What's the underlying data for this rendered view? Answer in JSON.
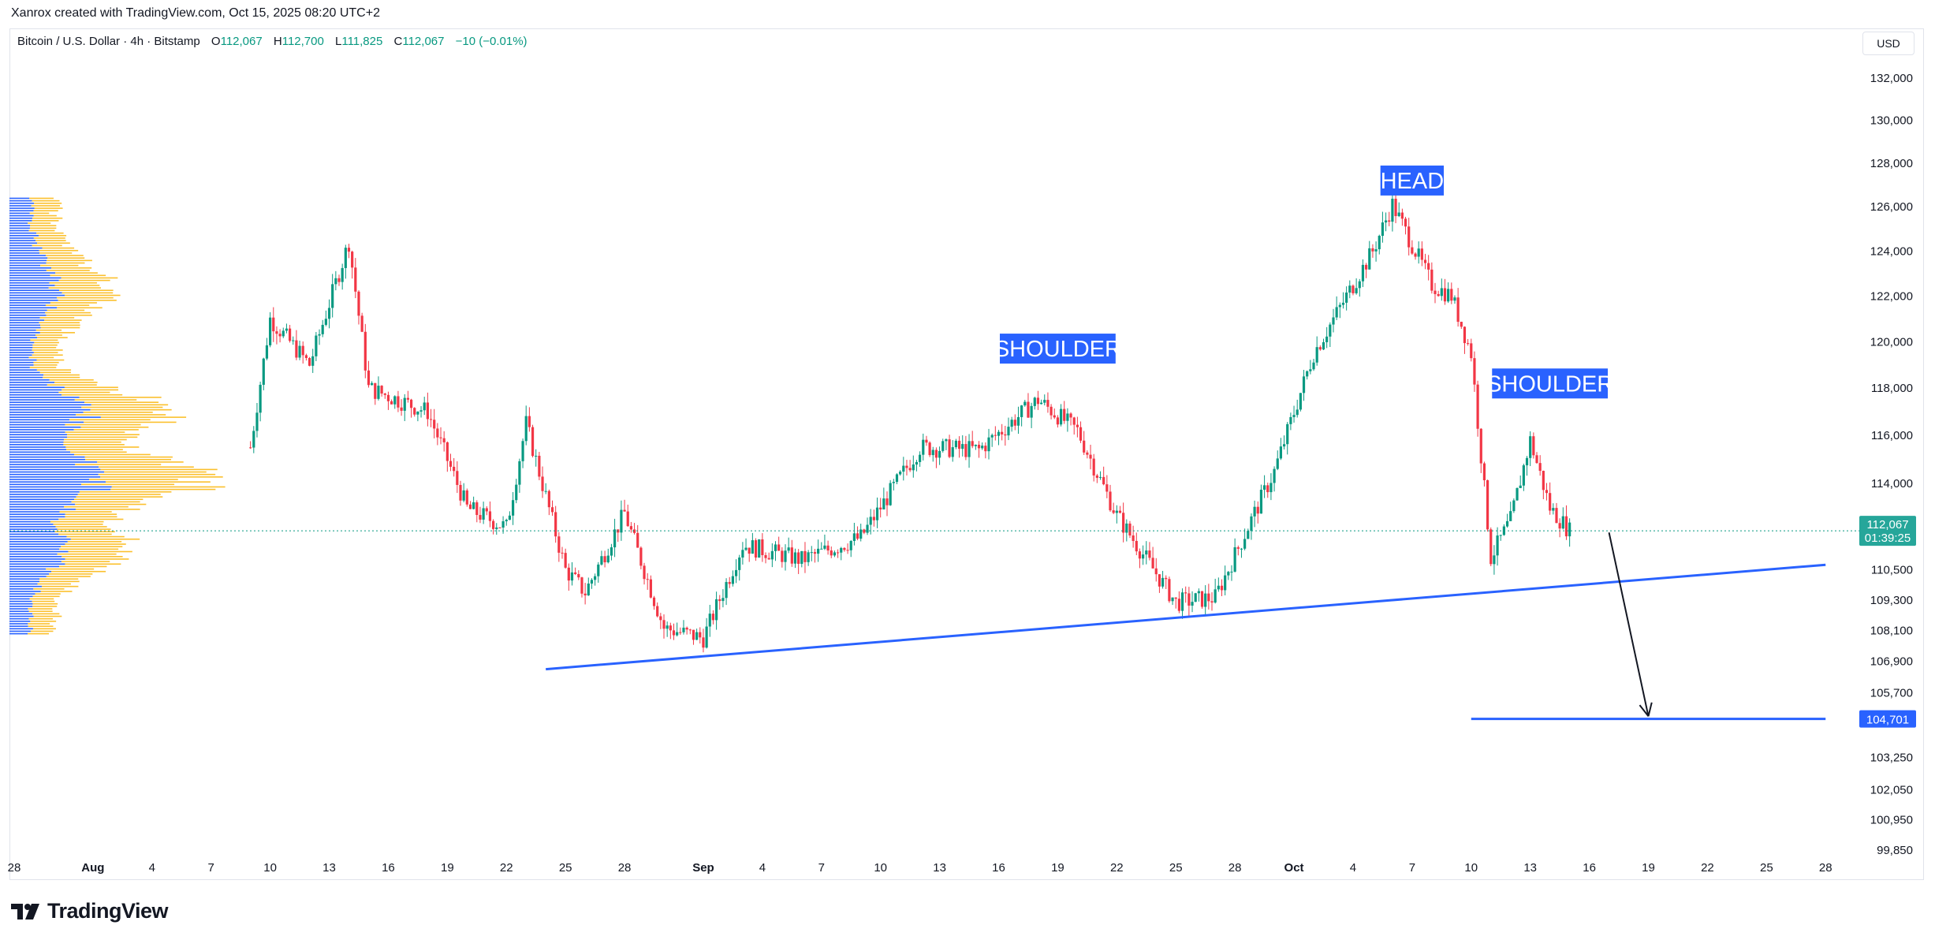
{
  "caption": "Xanrox created with TradingView.com, Oct 15, 2025 08:20 UTC+2",
  "legend": {
    "symbol": "Bitcoin / U.S. Dollar · 4h · Bitstamp",
    "open_label": "O",
    "open": "112,067",
    "high_label": "H",
    "high": "112,700",
    "low_label": "L",
    "low": "111,825",
    "close_label": "C",
    "close": "112,067",
    "change": "−10 (−0.01%)"
  },
  "currency": "USD",
  "brand": "TradingView",
  "colors": {
    "up": "#089981",
    "down": "#f23645",
    "neckline": "#2962ff",
    "label_bg": "#2962ff",
    "volume_profile_blue": "#2962ff",
    "volume_profile_orange": "#fbc02d",
    "last_price_bg": "#26a69a"
  },
  "chart_data": {
    "type": "candlestick",
    "title": "Bitcoin / U.S. Dollar · 4h · Bitstamp",
    "y_axis": {
      "scale": "log",
      "range": [
        99850,
        133500
      ],
      "ticks": [
        "132,000",
        "130,000",
        "128,000",
        "126,000",
        "124,000",
        "122,000",
        "120,000",
        "118,000",
        "116,000",
        "114,000",
        "112,067",
        "110,500",
        "109,300",
        "108,100",
        "106,900",
        "105,700",
        "104,701",
        "103,250",
        "102,050",
        "100,950",
        "99,850"
      ]
    },
    "x_axis": {
      "ticks": [
        "28",
        "Aug",
        "4",
        "7",
        "10",
        "13",
        "16",
        "19",
        "22",
        "25",
        "28",
        "Sep",
        "4",
        "7",
        "10",
        "13",
        "16",
        "19",
        "22",
        "25",
        "28",
        "Oct",
        "4",
        "7",
        "10",
        "13",
        "16",
        "19",
        "22",
        "25",
        "28"
      ]
    },
    "price_path": [
      {
        "date": "Aug 9",
        "price": 115500
      },
      {
        "date": "Aug 10",
        "price": 121000
      },
      {
        "date": "Aug 12",
        "price": 119000
      },
      {
        "date": "Aug 14",
        "price": 124400
      },
      {
        "date": "Aug 15",
        "price": 118000
      },
      {
        "date": "Aug 18",
        "price": 117000
      },
      {
        "date": "Aug 20",
        "price": 113000
      },
      {
        "date": "Aug 22",
        "price": 112200
      },
      {
        "date": "Aug 23",
        "price": 116500
      },
      {
        "date": "Aug 25",
        "price": 110500
      },
      {
        "date": "Aug 26",
        "price": 109600
      },
      {
        "date": "Aug 28",
        "price": 112800
      },
      {
        "date": "Aug 30",
        "price": 108200
      },
      {
        "date": "Sep 1",
        "price": 107800
      },
      {
        "date": "Sep 3",
        "price": 111500
      },
      {
        "date": "Sep 6",
        "price": 110900
      },
      {
        "date": "Sep 9",
        "price": 111800
      },
      {
        "date": "Sep 12",
        "price": 115500
      },
      {
        "date": "Sep 15",
        "price": 115400
      },
      {
        "date": "Sep 18",
        "price": 117500
      },
      {
        "date": "Sep 20",
        "price": 116200
      },
      {
        "date": "Sep 22",
        "price": 112700
      },
      {
        "date": "Sep 25",
        "price": 109200
      },
      {
        "date": "Sep 27",
        "price": 109400
      },
      {
        "date": "Sep 29",
        "price": 112800
      },
      {
        "date": "Sep 30",
        "price": 114500
      },
      {
        "date": "Oct 2",
        "price": 119500
      },
      {
        "date": "Oct 5",
        "price": 124000
      },
      {
        "date": "Oct 6",
        "price": 126100
      },
      {
        "date": "Oct 8",
        "price": 122500
      },
      {
        "date": "Oct 9",
        "price": 122000
      },
      {
        "date": "Oct 10",
        "price": 119500
      },
      {
        "date": "Oct 11",
        "price": 111000
      },
      {
        "date": "Oct 12",
        "price": 112500
      },
      {
        "date": "Oct 13",
        "price": 115800
      },
      {
        "date": "Oct 14",
        "price": 113000
      },
      {
        "date": "Oct 15",
        "price": 112067
      }
    ],
    "annotations": [
      {
        "text": "SHOULDER",
        "date": "Sep 19",
        "price": 119700
      },
      {
        "text": "HEAD",
        "date": "Oct 7",
        "price": 127200
      },
      {
        "text": "SHOULDER",
        "date": "Oct 14",
        "price": 118200
      }
    ],
    "neckline": [
      {
        "date": "Aug 24",
        "price": 106600
      },
      {
        "date": "Oct 28",
        "price": 110700
      }
    ],
    "target_line": {
      "from": "Oct 10",
      "to": "Oct 28",
      "price": 104701
    },
    "projection_arrow": {
      "from_date": "Oct 17",
      "from_price": 112000,
      "to_date": "Oct 19",
      "to_price": 104800
    },
    "last_price": {
      "price": "112,067",
      "countdown": "01:39:25"
    },
    "target_price_label": "104,701"
  }
}
